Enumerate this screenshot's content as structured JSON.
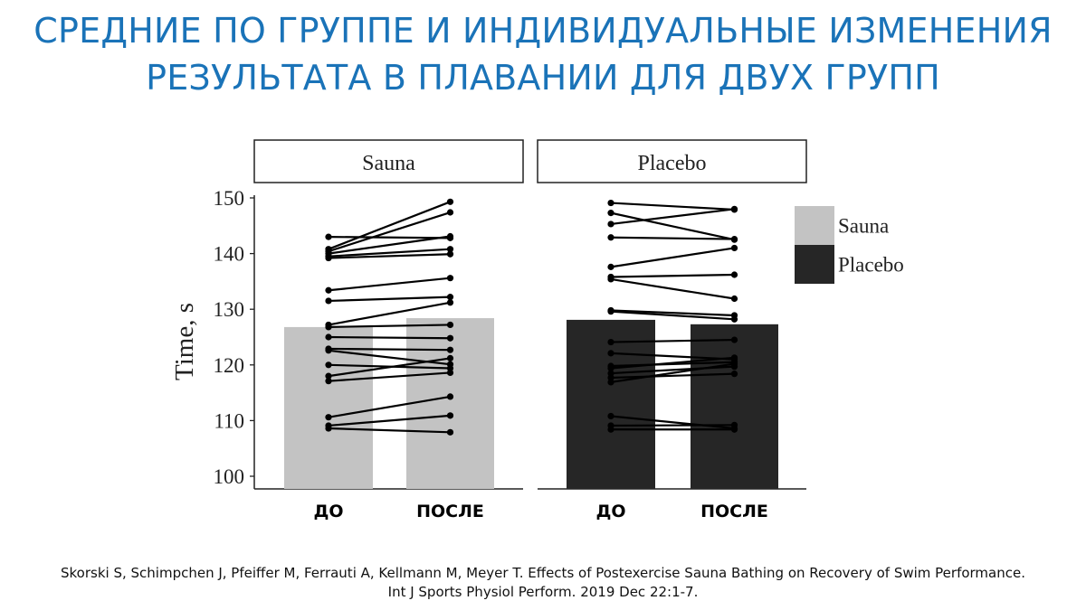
{
  "slide": {
    "title_line1": "СРЕДНИЕ ПО ГРУППЕ И ИНДИВИДУАЛЬНЫЕ ИЗМЕНЕНИЯ",
    "title_line2": "РЕЗУЛЬТАТА В ПЛАВАНИИ ДЛЯ ДВУХ ГРУПП",
    "reference_line1": "Skorski S, Schimpchen J, Pfeiffer M, Ferrauti A, Kellmann M, Meyer T. Effects of Postexercise Sauna Bathing on Recovery of Swim Performance.",
    "reference_line2": "Int J Sports Physiol Perform. 2019 Dec 22:1-7."
  },
  "chart_data": {
    "type": "bar",
    "ylabel": "Time, s",
    "ylim": [
      100,
      150
    ],
    "yticks": [
      100,
      110,
      120,
      130,
      140,
      150
    ],
    "categories": [
      "ДО",
      "ПОСЛЕ"
    ],
    "legend": {
      "position": "right",
      "entries": [
        {
          "label": "Sauna",
          "color": "#c3c3c3"
        },
        {
          "label": "Placebo",
          "color": "#262626"
        }
      ]
    },
    "panels": [
      {
        "name": "Sauna",
        "bar_color": "#c3c3c3",
        "means": [
          126.8,
          128.4
        ],
        "individuals": [
          [
            143.0,
            142.8
          ],
          [
            140.8,
            149.3
          ],
          [
            140.4,
            147.4
          ],
          [
            140.0,
            143.1
          ],
          [
            139.5,
            140.8
          ],
          [
            139.2,
            139.9
          ],
          [
            133.4,
            135.6
          ],
          [
            131.5,
            132.2
          ],
          [
            127.2,
            131.2
          ],
          [
            126.8,
            127.2
          ],
          [
            125.0,
            124.8
          ],
          [
            122.9,
            122.7
          ],
          [
            122.6,
            120.1
          ],
          [
            120.0,
            119.4
          ],
          [
            118.0,
            121.2
          ],
          [
            117.1,
            118.6
          ],
          [
            110.6,
            114.3
          ],
          [
            109.1,
            110.9
          ],
          [
            108.6,
            107.9
          ]
        ]
      },
      {
        "name": "Placebo",
        "bar_color": "#262626",
        "means": [
          128.1,
          127.3
        ],
        "individuals": [
          [
            149.1,
            147.9
          ],
          [
            147.3,
            142.5
          ],
          [
            145.3,
            148.0
          ],
          [
            142.9,
            142.6
          ],
          [
            137.6,
            141.0
          ],
          [
            135.8,
            136.2
          ],
          [
            135.4,
            131.9
          ],
          [
            129.8,
            128.9
          ],
          [
            129.6,
            128.2
          ],
          [
            124.1,
            124.5
          ],
          [
            122.1,
            121.0
          ],
          [
            119.8,
            120.5
          ],
          [
            119.4,
            121.3
          ],
          [
            118.5,
            119.7
          ],
          [
            117.7,
            118.4
          ],
          [
            116.9,
            120.2
          ],
          [
            110.8,
            108.6
          ],
          [
            109.1,
            109.2
          ],
          [
            108.4,
            108.4
          ]
        ]
      }
    ]
  }
}
